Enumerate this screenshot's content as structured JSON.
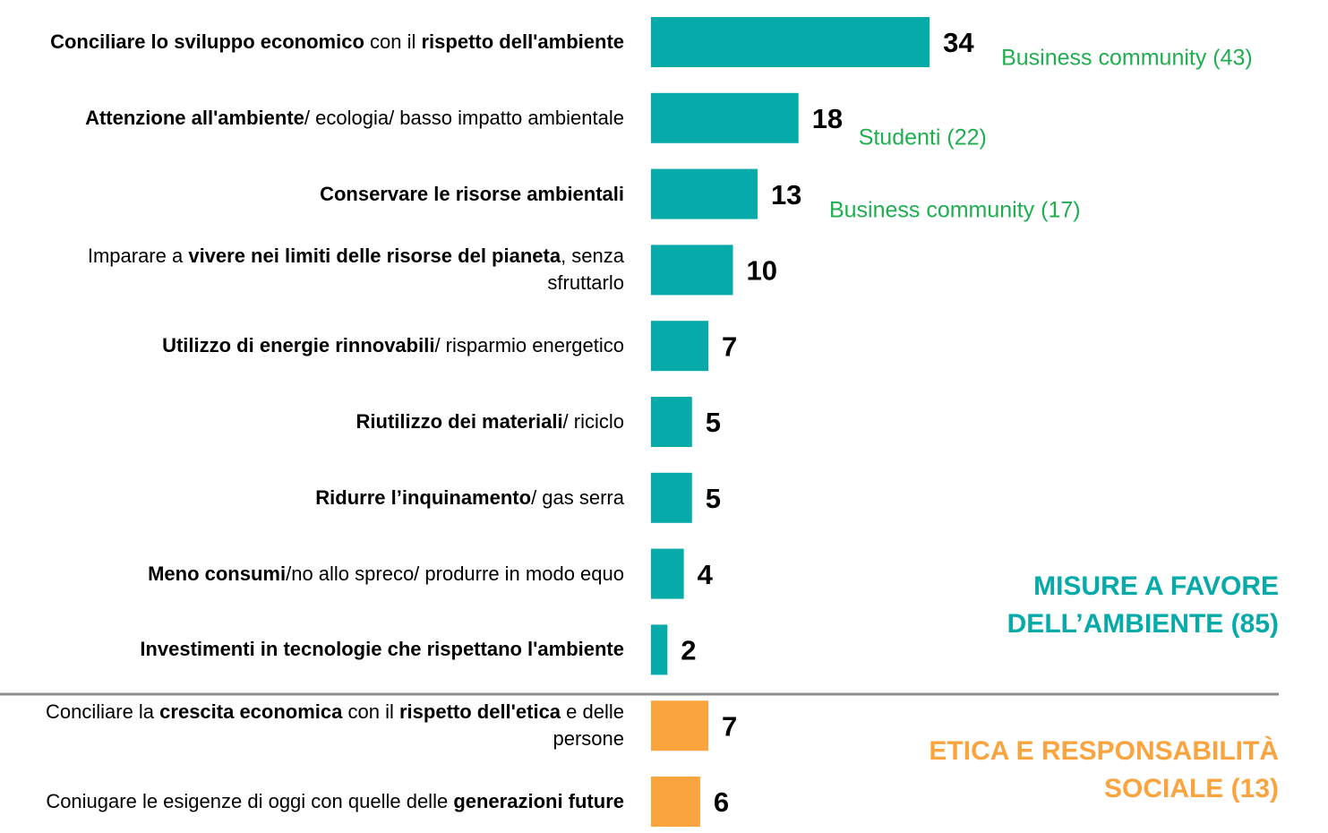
{
  "chart_data": {
    "type": "bar",
    "orientation": "horizontal",
    "categories": [
      [
        {
          "text": "Conciliare lo sviluppo economico",
          "bold": true
        },
        {
          "text": " con il ",
          "bold": false
        },
        {
          "text": "rispetto dell'ambiente",
          "bold": true
        }
      ],
      [
        {
          "text": "Attenzione all'ambiente",
          "bold": true
        },
        {
          "text": "/ ecologia/ basso impatto ambientale",
          "bold": false
        }
      ],
      [
        {
          "text": "Conservare le risorse ambientali",
          "bold": true
        }
      ],
      [
        {
          "text": "Imparare a ",
          "bold": false
        },
        {
          "text": "vivere nei limiti delle risorse del pianeta",
          "bold": true
        },
        {
          "text": ", senza sfruttarlo",
          "bold": false
        }
      ],
      [
        {
          "text": "Utilizzo di energie rinnovabili",
          "bold": true
        },
        {
          "text": "/ risparmio energetico",
          "bold": false
        }
      ],
      [
        {
          "text": "Riutilizzo dei materiali",
          "bold": true
        },
        {
          "text": "/ riciclo",
          "bold": false
        }
      ],
      [
        {
          "text": "Ridurre l’inquinamento",
          "bold": true
        },
        {
          "text": "/ gas serra",
          "bold": false
        }
      ],
      [
        {
          "text": "Meno consumi",
          "bold": true
        },
        {
          "text": "/no allo spreco/ produrre in modo equo",
          "bold": false
        }
      ],
      [
        {
          "text": "Investimenti in tecnologie che rispettano l'ambiente",
          "bold": true
        }
      ],
      [
        {
          "text": "Conciliare la ",
          "bold": false
        },
        {
          "text": "crescita economica",
          "bold": true
        },
        {
          "text": " con il ",
          "bold": false
        },
        {
          "text": "rispetto dell'etica",
          "bold": true
        },
        {
          "text": " e delle persone",
          "bold": false
        }
      ],
      [
        {
          "text": "Coniugare le esigenze di oggi con quelle delle ",
          "bold": false
        },
        {
          "text": "generazioni future",
          "bold": true
        }
      ]
    ],
    "values": [
      34,
      18,
      13,
      10,
      7,
      5,
      5,
      4,
      2,
      7,
      6
    ],
    "colors": [
      "#05aaa9",
      "#05aaa9",
      "#05aaa9",
      "#05aaa9",
      "#05aaa9",
      "#05aaa9",
      "#05aaa9",
      "#05aaa9",
      "#05aaa9",
      "#f9a43f",
      "#f9a43f"
    ],
    "notes": [
      "Business community (43)",
      "Studenti (22)",
      "Business community (17)",
      null,
      null,
      null,
      null,
      null,
      null,
      null,
      null
    ],
    "note_color": "#1fae4f",
    "groups": [
      {
        "text": "MISURE A FAVORE DELL’AMBIENTE (85)",
        "color": "#05aaa9"
      },
      {
        "text": "ETICA E RESPONSABILITÀ SOCIALE (13)",
        "color": "#f9a43f"
      }
    ]
  }
}
